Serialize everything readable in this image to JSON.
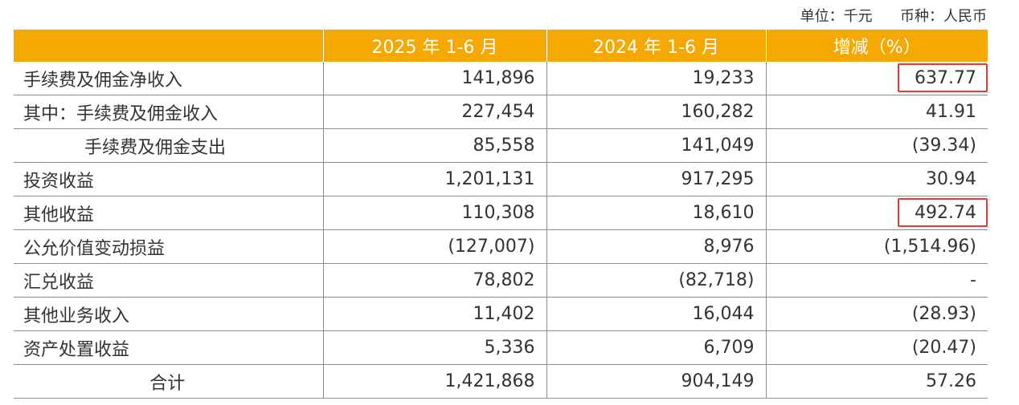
{
  "units_line": "单位：千元      币种：人民币",
  "header": {
    "col0": "",
    "col1": "2025 年 1-6 月",
    "col2": "2024 年 1-6 月",
    "col3": "增减（%）"
  },
  "rows": [
    {
      "label": "手续费及佣金净收入",
      "v2025": "141,896",
      "v2024": "19,233",
      "change": "637.77"
    },
    {
      "label": "其中：手续费及佣金收入",
      "v2025": "227,454",
      "v2024": "160,282",
      "change": "41.91"
    },
    {
      "label": "手续费及佣金支出",
      "v2025": "85,558",
      "v2024": "141,049",
      "change": "(39.34)"
    },
    {
      "label": "投资收益",
      "v2025": "1,201,131",
      "v2024": "917,295",
      "change": "30.94"
    },
    {
      "label": "其他收益",
      "v2025": "110,308",
      "v2024": "18,610",
      "change": "492.74"
    },
    {
      "label": "公允价值变动损益",
      "v2025": "(127,007)",
      "v2024": "8,976",
      "change": "(1,514.96)"
    },
    {
      "label": "汇兑收益",
      "v2025": "78,802",
      "v2024": "(82,718)",
      "change": "-"
    },
    {
      "label": "其他业务收入",
      "v2025": "11,402",
      "v2024": "16,044",
      "change": "(28.93)"
    },
    {
      "label": "资产处置收益",
      "v2025": "5,336",
      "v2024": "6,709",
      "change": "(20.47)"
    },
    {
      "label": "合计",
      "v2025": "1,421,868",
      "v2024": "904,149",
      "change": "57.26"
    }
  ],
  "colors": {
    "header_bg": "#F5A800",
    "highlight_border": "#E53935",
    "rule": "#8c8c8c"
  }
}
